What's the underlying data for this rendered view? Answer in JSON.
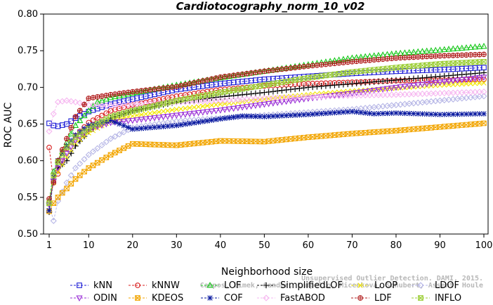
{
  "chart_data": {
    "type": "line",
    "title": "Cardiotocography_norm_10_v02",
    "xlabel": "Neighborhood size",
    "ylabel": "ROC AUC",
    "xlim": [
      1,
      100
    ],
    "ylim": [
      0.5,
      0.8
    ],
    "xticks": [
      "1",
      "10",
      "20",
      "30",
      "40",
      "50",
      "60",
      "70",
      "80",
      "90",
      "100"
    ],
    "yticks": [
      "0.50",
      "0.55",
      "0.60",
      "0.65",
      "0.70",
      "0.75",
      "0.80"
    ],
    "grid": false,
    "legend_position": "bottom",
    "watermark": [
      "Campos, Zimek, Sander, Campello, Micenkova, Schubert, Assent, Houle",
      "Unsupervised Outlier Detection. DAMI, 2015."
    ],
    "series": [
      {
        "name": "kNN",
        "color": "#1c1cd6",
        "marker": "square",
        "points": [
          [
            1,
            0.651
          ],
          [
            2,
            0.648
          ],
          [
            3,
            0.647
          ],
          [
            5,
            0.65
          ],
          [
            7,
            0.658
          ],
          [
            10,
            0.667
          ],
          [
            15,
            0.677
          ],
          [
            20,
            0.684
          ],
          [
            30,
            0.697
          ],
          [
            40,
            0.705
          ],
          [
            50,
            0.711
          ],
          [
            60,
            0.715
          ],
          [
            70,
            0.719
          ],
          [
            80,
            0.722
          ],
          [
            90,
            0.724
          ],
          [
            100,
            0.727
          ]
        ]
      },
      {
        "name": "kNNW",
        "color": "#d81f1f",
        "marker": "circle",
        "points": [
          [
            1,
            0.618
          ],
          [
            2,
            0.572
          ],
          [
            3,
            0.582
          ],
          [
            5,
            0.617
          ],
          [
            7,
            0.634
          ],
          [
            10,
            0.652
          ],
          [
            15,
            0.668
          ],
          [
            20,
            0.676
          ],
          [
            30,
            0.688
          ],
          [
            40,
            0.697
          ],
          [
            50,
            0.702
          ],
          [
            60,
            0.705
          ],
          [
            70,
            0.707
          ],
          [
            80,
            0.709
          ],
          [
            90,
            0.71
          ],
          [
            100,
            0.711
          ]
        ]
      },
      {
        "name": "LOF",
        "color": "#19c81c",
        "marker": "triangle-up",
        "points": [
          [
            1,
            0.545
          ],
          [
            2,
            0.585
          ],
          [
            3,
            0.6
          ],
          [
            5,
            0.625
          ],
          [
            7,
            0.648
          ],
          [
            10,
            0.668
          ],
          [
            12,
            0.68
          ],
          [
            15,
            0.686
          ],
          [
            20,
            0.692
          ],
          [
            30,
            0.703
          ],
          [
            40,
            0.713
          ],
          [
            50,
            0.722
          ],
          [
            60,
            0.731
          ],
          [
            70,
            0.74
          ],
          [
            80,
            0.746
          ],
          [
            90,
            0.751
          ],
          [
            100,
            0.756
          ]
        ]
      },
      {
        "name": "SimplifiedLOF",
        "color": "#000000",
        "marker": "plus",
        "points": [
          [
            1,
            0.53
          ],
          [
            2,
            0.575
          ],
          [
            3,
            0.59
          ],
          [
            5,
            0.6
          ],
          [
            7,
            0.62
          ],
          [
            10,
            0.64
          ],
          [
            15,
            0.658
          ],
          [
            20,
            0.668
          ],
          [
            30,
            0.68
          ],
          [
            40,
            0.687
          ],
          [
            50,
            0.693
          ],
          [
            60,
            0.7
          ],
          [
            70,
            0.705
          ],
          [
            80,
            0.71
          ],
          [
            90,
            0.715
          ],
          [
            100,
            0.72
          ]
        ]
      },
      {
        "name": "LoOP",
        "color": "#f2e600",
        "marker": "x",
        "points": [
          [
            1,
            0.541
          ],
          [
            2,
            0.57
          ],
          [
            3,
            0.585
          ],
          [
            5,
            0.605
          ],
          [
            7,
            0.624
          ],
          [
            10,
            0.638
          ],
          [
            15,
            0.654
          ],
          [
            20,
            0.661
          ],
          [
            30,
            0.67
          ],
          [
            40,
            0.677
          ],
          [
            50,
            0.684
          ],
          [
            60,
            0.69
          ],
          [
            70,
            0.695
          ],
          [
            80,
            0.699
          ],
          [
            90,
            0.703
          ],
          [
            100,
            0.706
          ]
        ]
      },
      {
        "name": "LDOF",
        "color": "#b6b6e6",
        "marker": "diamond",
        "points": [
          [
            1,
            0.54
          ],
          [
            2,
            0.518
          ],
          [
            3,
            0.545
          ],
          [
            5,
            0.57
          ],
          [
            7,
            0.59
          ],
          [
            10,
            0.608
          ],
          [
            15,
            0.63
          ],
          [
            20,
            0.645
          ],
          [
            30,
            0.654
          ],
          [
            40,
            0.658
          ],
          [
            50,
            0.662
          ],
          [
            60,
            0.666
          ],
          [
            70,
            0.67
          ],
          [
            80,
            0.676
          ],
          [
            90,
            0.682
          ],
          [
            100,
            0.688
          ]
        ]
      },
      {
        "name": "ODIN",
        "color": "#9a2fd6",
        "marker": "triangle-down",
        "points": [
          [
            1,
            0.54
          ],
          [
            2,
            0.572
          ],
          [
            3,
            0.59
          ],
          [
            5,
            0.61
          ],
          [
            7,
            0.628
          ],
          [
            10,
            0.643
          ],
          [
            15,
            0.652
          ],
          [
            20,
            0.655
          ],
          [
            30,
            0.662
          ],
          [
            40,
            0.669
          ],
          [
            50,
            0.677
          ],
          [
            60,
            0.685
          ],
          [
            70,
            0.692
          ],
          [
            80,
            0.7
          ],
          [
            90,
            0.707
          ],
          [
            100,
            0.714
          ]
        ]
      },
      {
        "name": "KDEOS",
        "color": "#f2a500",
        "marker": "square-x",
        "points": [
          [
            1,
            0.531
          ],
          [
            2,
            0.542
          ],
          [
            3,
            0.55
          ],
          [
            5,
            0.562
          ],
          [
            7,
            0.575
          ],
          [
            10,
            0.59
          ],
          [
            15,
            0.608
          ],
          [
            20,
            0.623
          ],
          [
            25,
            0.622
          ],
          [
            30,
            0.621
          ],
          [
            40,
            0.627
          ],
          [
            50,
            0.626
          ],
          [
            60,
            0.632
          ],
          [
            70,
            0.637
          ],
          [
            80,
            0.641
          ],
          [
            90,
            0.646
          ],
          [
            100,
            0.651
          ]
        ]
      },
      {
        "name": "COF",
        "color": "#0a1aa0",
        "marker": "asterisk",
        "points": [
          [
            1,
            0.532
          ],
          [
            2,
            0.58
          ],
          [
            3,
            0.6
          ],
          [
            5,
            0.62
          ],
          [
            7,
            0.635
          ],
          [
            10,
            0.648
          ],
          [
            15,
            0.655
          ],
          [
            20,
            0.643
          ],
          [
            30,
            0.648
          ],
          [
            40,
            0.657
          ],
          [
            45,
            0.661
          ],
          [
            50,
            0.66
          ],
          [
            60,
            0.663
          ],
          [
            70,
            0.667
          ],
          [
            75,
            0.664
          ],
          [
            80,
            0.665
          ],
          [
            90,
            0.663
          ],
          [
            100,
            0.664
          ]
        ]
      },
      {
        "name": "FastABOD",
        "color": "#f6b6f0",
        "marker": "diamond",
        "points": [
          [
            1,
            0.64
          ],
          [
            2,
            0.664
          ],
          [
            3,
            0.68
          ],
          [
            5,
            0.682
          ],
          [
            7,
            0.68
          ],
          [
            10,
            0.676
          ],
          [
            15,
            0.675
          ],
          [
            20,
            0.677
          ],
          [
            30,
            0.68
          ],
          [
            40,
            0.682
          ],
          [
            50,
            0.685
          ],
          [
            60,
            0.687
          ],
          [
            70,
            0.689
          ],
          [
            80,
            0.69
          ],
          [
            90,
            0.692
          ],
          [
            100,
            0.694
          ]
        ]
      },
      {
        "name": "LDF",
        "color": "#b01c1c",
        "marker": "circle-plus",
        "points": [
          [
            1,
            0.548
          ],
          [
            2,
            0.57
          ],
          [
            3,
            0.6
          ],
          [
            5,
            0.63
          ],
          [
            7,
            0.66
          ],
          [
            10,
            0.685
          ],
          [
            15,
            0.69
          ],
          [
            20,
            0.694
          ],
          [
            30,
            0.701
          ],
          [
            40,
            0.714
          ],
          [
            50,
            0.722
          ],
          [
            60,
            0.729
          ],
          [
            70,
            0.735
          ],
          [
            80,
            0.74
          ],
          [
            90,
            0.743
          ],
          [
            100,
            0.745
          ]
        ]
      },
      {
        "name": "INFLO",
        "color": "#9acd32",
        "marker": "square-x",
        "points": [
          [
            1,
            0.542
          ],
          [
            2,
            0.58
          ],
          [
            3,
            0.598
          ],
          [
            5,
            0.618
          ],
          [
            7,
            0.632
          ],
          [
            10,
            0.644
          ],
          [
            15,
            0.66
          ],
          [
            20,
            0.668
          ],
          [
            30,
            0.682
          ],
          [
            40,
            0.693
          ],
          [
            50,
            0.703
          ],
          [
            60,
            0.713
          ],
          [
            70,
            0.721
          ],
          [
            80,
            0.727
          ],
          [
            90,
            0.732
          ],
          [
            100,
            0.735
          ]
        ]
      }
    ]
  }
}
